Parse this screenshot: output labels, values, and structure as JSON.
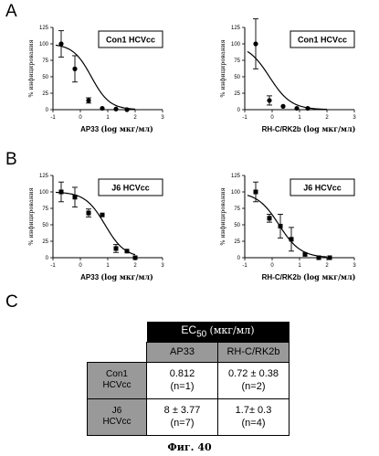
{
  "panels": {
    "A": "A",
    "B": "B",
    "C": "C"
  },
  "ylabel": "% инфицирования",
  "chart_data": [
    {
      "id": "A1",
      "type": "scatter",
      "legend": "Con1 HCVcc",
      "xlabel_main": "AP33",
      "xlabel_unit": "(log мкг/мл)",
      "xlim": [
        -1,
        3
      ],
      "ylim": [
        0,
        125
      ],
      "xticks": [
        -1,
        0,
        1,
        2,
        3
      ],
      "yticks": [
        0,
        25,
        50,
        75,
        100,
        125
      ],
      "marker": "circle",
      "points": [
        {
          "x": -0.7,
          "y": 100,
          "err": 20
        },
        {
          "x": -0.2,
          "y": 62,
          "err": 20
        },
        {
          "x": 0.3,
          "y": 14,
          "err": 4
        },
        {
          "x": 0.8,
          "y": 2,
          "err": 0
        },
        {
          "x": 1.3,
          "y": 1,
          "err": 0
        },
        {
          "x": 1.7,
          "y": 0,
          "err": 0
        }
      ],
      "curve": {
        "top": 100,
        "bottom": 0,
        "logEC50": 0.4,
        "hill": 1.3
      }
    },
    {
      "id": "A2",
      "type": "scatter",
      "legend": "Con1 HCVcc",
      "xlabel_main": "RH-C/RK2b",
      "xlabel_unit": "(log мкг/мл)",
      "xlim": [
        -1,
        3
      ],
      "ylim": [
        0,
        125
      ],
      "xticks": [
        -1,
        0,
        1,
        2,
        3
      ],
      "yticks": [
        0,
        25,
        50,
        75,
        100,
        125
      ],
      "marker": "circle",
      "points": [
        {
          "x": -0.6,
          "y": 100,
          "err": 38
        },
        {
          "x": -0.1,
          "y": 14,
          "err": 7
        },
        {
          "x": 0.4,
          "y": 5,
          "err": 0
        },
        {
          "x": 0.9,
          "y": 2,
          "err": 0
        },
        {
          "x": 1.3,
          "y": 2,
          "err": 0
        }
      ],
      "curve": {
        "top": 100,
        "bottom": 0,
        "logEC50": -0.1,
        "hill": 1.1
      }
    },
    {
      "id": "B1",
      "type": "scatter",
      "legend": "J6 HCVcc",
      "xlabel_main": "AP33",
      "xlabel_unit": "(log мкг/мл)",
      "xlim": [
        -1,
        3
      ],
      "ylim": [
        0,
        125
      ],
      "xticks": [
        -1,
        0,
        1,
        2,
        3
      ],
      "yticks": [
        0,
        25,
        50,
        75,
        100,
        125
      ],
      "marker": "square",
      "points": [
        {
          "x": -0.7,
          "y": 100,
          "err": 15
        },
        {
          "x": -0.2,
          "y": 92,
          "err": 15
        },
        {
          "x": 0.3,
          "y": 68,
          "err": 6
        },
        {
          "x": 0.8,
          "y": 65,
          "err": 0
        },
        {
          "x": 1.3,
          "y": 14,
          "err": 6
        },
        {
          "x": 1.7,
          "y": 10,
          "err": 0
        },
        {
          "x": 2.0,
          "y": 0,
          "err": 0
        }
      ],
      "curve": {
        "top": 100,
        "bottom": 0,
        "logEC50": 0.9,
        "hill": 1.2
      }
    },
    {
      "id": "B2",
      "type": "scatter",
      "legend": "J6 HCVcc",
      "xlabel_main": "RH-C/RK2b",
      "xlabel_unit": "(log мкг/мл)",
      "xlim": [
        -1,
        3
      ],
      "ylim": [
        0,
        125
      ],
      "xticks": [
        -1,
        0,
        1,
        2,
        3
      ],
      "yticks": [
        0,
        25,
        50,
        75,
        100,
        125
      ],
      "marker": "square",
      "points": [
        {
          "x": -0.6,
          "y": 100,
          "err": 15
        },
        {
          "x": -0.1,
          "y": 60,
          "err": 6
        },
        {
          "x": 0.3,
          "y": 48,
          "err": 18
        },
        {
          "x": 0.7,
          "y": 28,
          "err": 18
        },
        {
          "x": 1.2,
          "y": 5,
          "err": 0
        },
        {
          "x": 1.7,
          "y": 0,
          "err": 0
        },
        {
          "x": 2.1,
          "y": 0,
          "err": 0
        }
      ],
      "curve": {
        "top": 100,
        "bottom": 0,
        "logEC50": 0.25,
        "hill": 1.1
      }
    }
  ],
  "table": {
    "header_main": "EC",
    "header_sub": "50",
    "header_unit": "(мкг/мл)",
    "col1": "AP33",
    "col2": "RH-C/RK2b",
    "row1_label_1": "Con1",
    "row1_label_2": "HCVcc",
    "row2_label_1": "J6",
    "row2_label_2": "HCVcc",
    "r1c1_val": "0.812",
    "r1c1_n": "(n=1)",
    "r1c2_val": "0.72 ± 0.38",
    "r1c2_n": "(n=2)",
    "r2c1_val": "8 ± 3.77",
    "r2c1_n": "(n=7)",
    "r2c2_val": "1.7± 0.3",
    "r2c2_n": "(n=4)"
  },
  "caption": "Фиг. 40"
}
